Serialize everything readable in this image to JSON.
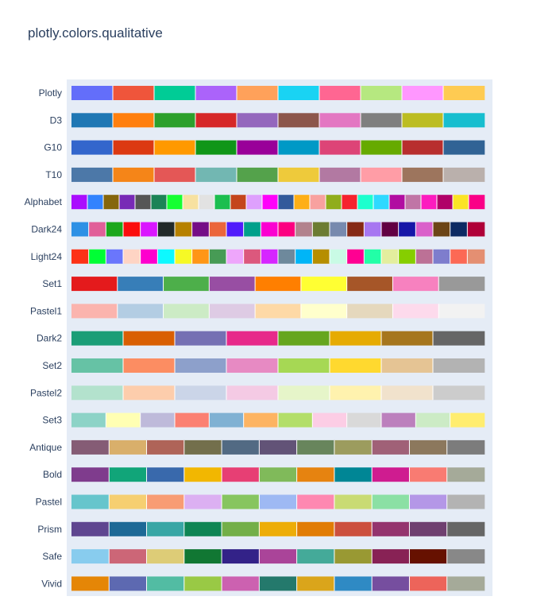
{
  "title": "plotly.colors.qualitative",
  "chart_data": {
    "type": "heatmap",
    "title": "plotly.colors.qualitative",
    "xlabel": "",
    "ylabel": "",
    "grid": false,
    "palettes": [
      {
        "name": "Plotly",
        "colors": [
          "#636EFA",
          "#EF553B",
          "#00CC96",
          "#AB63FA",
          "#FFA15A",
          "#19D3F3",
          "#FF6692",
          "#B6E880",
          "#FF97FF",
          "#FECB52"
        ]
      },
      {
        "name": "D3",
        "colors": [
          "#1F77B4",
          "#FF7F0E",
          "#2CA02C",
          "#D62728",
          "#9467BD",
          "#8C564B",
          "#E377C2",
          "#7F7F7F",
          "#BCBD22",
          "#17BECF"
        ]
      },
      {
        "name": "G10",
        "colors": [
          "#3366CC",
          "#DC3912",
          "#FF9900",
          "#109618",
          "#990099",
          "#0099C6",
          "#DD4477",
          "#66AA00",
          "#B82E2E",
          "#316395"
        ]
      },
      {
        "name": "T10",
        "colors": [
          "#4C78A8",
          "#F58518",
          "#E45756",
          "#72B7B2",
          "#54A24B",
          "#EECA3B",
          "#B279A2",
          "#FF9DA6",
          "#9D755D",
          "#BAB0AC"
        ]
      },
      {
        "name": "Alphabet",
        "colors": [
          "#AA0DFE",
          "#3283FE",
          "#85660D",
          "#782AB6",
          "#565656",
          "#1C8356",
          "#16FF32",
          "#F7E1A0",
          "#E2E2E2",
          "#1CBE4F",
          "#C4451C",
          "#DEA0FD",
          "#FE00FA",
          "#325A9B",
          "#FEAF16",
          "#F8A19F",
          "#90AD1C",
          "#F6222E",
          "#1CFFCE",
          "#2ED9FF",
          "#B10DA1",
          "#C075A6",
          "#FC1CBF",
          "#B00068",
          "#FBE426",
          "#FA0087"
        ]
      },
      {
        "name": "Dark24",
        "colors": [
          "#2E91E5",
          "#E15F99",
          "#1CA71C",
          "#FB0D0D",
          "#DA16FF",
          "#222A2A",
          "#B68100",
          "#750D86",
          "#EB663B",
          "#511CFB",
          "#00A08B",
          "#FB00D1",
          "#FC0080",
          "#B2828D",
          "#6C7C32",
          "#778AAE",
          "#862A16",
          "#A777F1",
          "#620042",
          "#1616A7",
          "#DA60CA",
          "#6C4516",
          "#0D2A63",
          "#AF0038"
        ]
      },
      {
        "name": "Light24",
        "colors": [
          "#FD3216",
          "#00FE35",
          "#6A76FC",
          "#FED4C4",
          "#FE00CE",
          "#0DF9FF",
          "#F6F926",
          "#FF9616",
          "#479B55",
          "#EEA6FB",
          "#DC587D",
          "#D626FF",
          "#6E899C",
          "#00B5F7",
          "#B68E00",
          "#C9FBE5",
          "#FF0092",
          "#22FFA7",
          "#E3EE9E",
          "#86CE00",
          "#BC7196",
          "#7E7DCD",
          "#FC6955",
          "#E48F72"
        ]
      },
      {
        "name": "Set1",
        "colors": [
          "#E41A1C",
          "#377EB8",
          "#4DAF4A",
          "#984EA3",
          "#FF7F00",
          "#FFFF33",
          "#A65628",
          "#F781BF",
          "#999999"
        ]
      },
      {
        "name": "Pastel1",
        "colors": [
          "#FBB4AE",
          "#B3CDE3",
          "#CCEBC5",
          "#DECBE4",
          "#FED9A6",
          "#FFFFCC",
          "#E5D8BD",
          "#FDDAEC",
          "#F2F2F2"
        ]
      },
      {
        "name": "Dark2",
        "colors": [
          "#1B9E77",
          "#D95F02",
          "#7570B3",
          "#E7298A",
          "#66A61E",
          "#E6AB02",
          "#A6761D",
          "#666666"
        ]
      },
      {
        "name": "Set2",
        "colors": [
          "#66C2A5",
          "#FC8D62",
          "#8DA0CB",
          "#E78AC3",
          "#A6D854",
          "#FFD92F",
          "#E5C494",
          "#B3B3B3"
        ]
      },
      {
        "name": "Pastel2",
        "colors": [
          "#B3E2CD",
          "#FDCDAC",
          "#CBD5E8",
          "#F4CAE4",
          "#E6F5C9",
          "#FFF2AE",
          "#F1E2CC",
          "#CCCCCC"
        ]
      },
      {
        "name": "Set3",
        "colors": [
          "#8DD3C7",
          "#FFFFB3",
          "#BEBADA",
          "#FB8072",
          "#80B1D3",
          "#FDB462",
          "#B3DE69",
          "#FCCDE5",
          "#D9D9D9",
          "#BC80BD",
          "#CCEBC5",
          "#FFED6F"
        ]
      },
      {
        "name": "Antique",
        "colors": [
          "#855C75",
          "#D9AF6B",
          "#AF6458",
          "#736F4C",
          "#526A83",
          "#625377",
          "#68855C",
          "#9C9C5E",
          "#A06177",
          "#8C785D",
          "#7C7C7C"
        ]
      },
      {
        "name": "Bold",
        "colors": [
          "#7F3C8D",
          "#11A579",
          "#3969AC",
          "#F2B701",
          "#E73F74",
          "#80BA5A",
          "#E68310",
          "#008695",
          "#CF1C90",
          "#F97B72",
          "#A5AA99"
        ]
      },
      {
        "name": "Pastel",
        "colors": [
          "#66C5CC",
          "#F6CF71",
          "#F89C74",
          "#DCB0F2",
          "#87C55F",
          "#9EB9F3",
          "#FE88B1",
          "#C9DB74",
          "#8BE0A4",
          "#B497E7",
          "#B3B3B3"
        ]
      },
      {
        "name": "Prism",
        "colors": [
          "#5F4690",
          "#1D6996",
          "#38A6A5",
          "#0F8554",
          "#73AF48",
          "#EDAD08",
          "#E17C05",
          "#CC503E",
          "#94346E",
          "#6F4070",
          "#666666"
        ]
      },
      {
        "name": "Safe",
        "colors": [
          "#88CCEE",
          "#CC6677",
          "#DDCC77",
          "#117733",
          "#332288",
          "#AA4499",
          "#44AA99",
          "#999933",
          "#882255",
          "#661100",
          "#888888"
        ]
      },
      {
        "name": "Vivid",
        "colors": [
          "#E58606",
          "#5D69B1",
          "#52BCA3",
          "#99C945",
          "#CC61B0",
          "#24796C",
          "#DAA51B",
          "#2F8AC4",
          "#764E9F",
          "#ED645A",
          "#A5AA99"
        ]
      }
    ]
  }
}
